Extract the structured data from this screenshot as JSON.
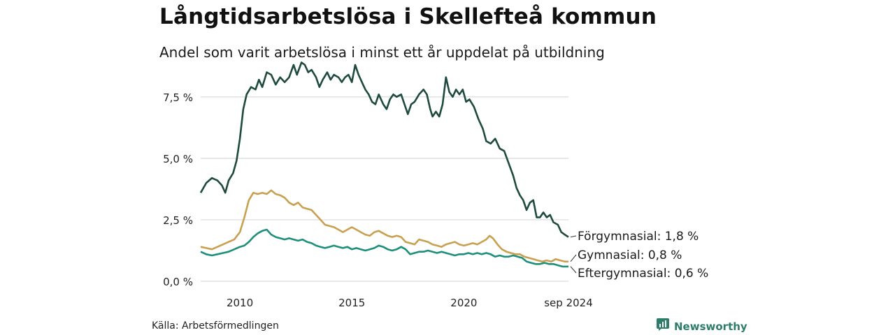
{
  "header": {
    "title": "Långtidsarbetslösa i Skellefteå kommun",
    "subtitle": "Andel som varit arbetslösa i minst ett år uppdelat på utbildning"
  },
  "footer": {
    "source": "Källa: Arbetsförmedlingen",
    "brand": "Newsworthy",
    "brand_icon": "bar-chart-speech-bubble-icon"
  },
  "colors": {
    "forgymnasial": "#1f4a3f",
    "gymnasial": "#c9a050",
    "eftergymnasial": "#1d8f7a",
    "grid": "#d9d9d9",
    "brand": "#2e7d6b"
  },
  "chart_data": {
    "type": "line",
    "title": "Långtidsarbetslösa i Skellefteå kommun",
    "subtitle": "Andel som varit arbetslösa i minst ett år uppdelat på utbildning",
    "xlabel": "",
    "ylabel": "",
    "xlim": [
      2008.25,
      2024.67
    ],
    "ylim": [
      0,
      9
    ],
    "yticks": [
      0,
      2.5,
      5,
      7.5
    ],
    "ytick_labels": [
      "0,0 %",
      "2,5 %",
      "5,0 %",
      "7,5 %"
    ],
    "xticks": [
      2010,
      2015,
      2020,
      2024.67
    ],
    "xtick_labels": [
      "2010",
      "2015",
      "2020",
      "sep 2024"
    ],
    "grid": true,
    "legend": "end-of-line labels",
    "series": [
      {
        "name": "Förgymnasial",
        "end_label": "Förgymnasial: 1,8 %",
        "points": [
          [
            2008.25,
            3.6
          ],
          [
            2008.5,
            4.0
          ],
          [
            2008.75,
            4.2
          ],
          [
            2009.0,
            4.1
          ],
          [
            2009.2,
            3.9
          ],
          [
            2009.35,
            3.6
          ],
          [
            2009.5,
            4.1
          ],
          [
            2009.7,
            4.4
          ],
          [
            2009.85,
            4.9
          ],
          [
            2010.0,
            5.8
          ],
          [
            2010.15,
            7.0
          ],
          [
            2010.3,
            7.6
          ],
          [
            2010.5,
            7.9
          ],
          [
            2010.7,
            7.8
          ],
          [
            2010.85,
            8.2
          ],
          [
            2011.0,
            7.9
          ],
          [
            2011.2,
            8.5
          ],
          [
            2011.4,
            8.4
          ],
          [
            2011.6,
            8.0
          ],
          [
            2011.8,
            8.3
          ],
          [
            2012.0,
            8.1
          ],
          [
            2012.2,
            8.3
          ],
          [
            2012.4,
            8.8
          ],
          [
            2012.55,
            8.4
          ],
          [
            2012.75,
            8.9
          ],
          [
            2012.9,
            8.8
          ],
          [
            2013.05,
            8.5
          ],
          [
            2013.2,
            8.6
          ],
          [
            2013.4,
            8.3
          ],
          [
            2013.55,
            7.9
          ],
          [
            2013.7,
            8.2
          ],
          [
            2013.9,
            8.5
          ],
          [
            2014.05,
            8.2
          ],
          [
            2014.2,
            8.4
          ],
          [
            2014.4,
            8.3
          ],
          [
            2014.55,
            8.1
          ],
          [
            2014.7,
            8.3
          ],
          [
            2014.85,
            8.4
          ],
          [
            2015.0,
            8.1
          ],
          [
            2015.15,
            8.8
          ],
          [
            2015.3,
            8.4
          ],
          [
            2015.45,
            8.1
          ],
          [
            2015.6,
            7.8
          ],
          [
            2015.75,
            7.6
          ],
          [
            2015.9,
            7.3
          ],
          [
            2016.05,
            7.2
          ],
          [
            2016.2,
            7.6
          ],
          [
            2016.4,
            7.2
          ],
          [
            2016.55,
            7.0
          ],
          [
            2016.7,
            7.4
          ],
          [
            2016.85,
            7.6
          ],
          [
            2017.0,
            7.5
          ],
          [
            2017.2,
            7.6
          ],
          [
            2017.35,
            7.2
          ],
          [
            2017.5,
            6.8
          ],
          [
            2017.65,
            7.2
          ],
          [
            2017.8,
            7.3
          ],
          [
            2018.0,
            7.6
          ],
          [
            2018.2,
            7.8
          ],
          [
            2018.35,
            7.6
          ],
          [
            2018.5,
            7.0
          ],
          [
            2018.6,
            6.7
          ],
          [
            2018.75,
            6.9
          ],
          [
            2018.9,
            6.7
          ],
          [
            2019.05,
            7.2
          ],
          [
            2019.2,
            8.3
          ],
          [
            2019.35,
            7.7
          ],
          [
            2019.5,
            7.5
          ],
          [
            2019.65,
            7.8
          ],
          [
            2019.8,
            7.6
          ],
          [
            2019.95,
            7.8
          ],
          [
            2020.1,
            7.3
          ],
          [
            2020.25,
            7.4
          ],
          [
            2020.45,
            7.1
          ],
          [
            2020.65,
            6.6
          ],
          [
            2020.85,
            6.2
          ],
          [
            2021.0,
            5.7
          ],
          [
            2021.2,
            5.6
          ],
          [
            2021.4,
            5.8
          ],
          [
            2021.6,
            5.4
          ],
          [
            2021.8,
            5.3
          ],
          [
            2022.0,
            4.8
          ],
          [
            2022.2,
            4.3
          ],
          [
            2022.35,
            3.8
          ],
          [
            2022.5,
            3.5
          ],
          [
            2022.65,
            3.3
          ],
          [
            2022.8,
            2.9
          ],
          [
            2022.95,
            3.2
          ],
          [
            2023.1,
            3.3
          ],
          [
            2023.25,
            2.6
          ],
          [
            2023.4,
            2.6
          ],
          [
            2023.55,
            2.8
          ],
          [
            2023.7,
            2.6
          ],
          [
            2023.85,
            2.7
          ],
          [
            2024.0,
            2.4
          ],
          [
            2024.2,
            2.3
          ],
          [
            2024.35,
            2.0
          ],
          [
            2024.5,
            1.9
          ],
          [
            2024.67,
            1.8
          ]
        ]
      },
      {
        "name": "Gymnasial",
        "end_label": "Gymnasial: 0,8 %",
        "points": [
          [
            2008.25,
            1.4
          ],
          [
            2008.5,
            1.35
          ],
          [
            2008.75,
            1.3
          ],
          [
            2009.0,
            1.4
          ],
          [
            2009.25,
            1.5
          ],
          [
            2009.5,
            1.6
          ],
          [
            2009.75,
            1.7
          ],
          [
            2010.0,
            2.0
          ],
          [
            2010.2,
            2.6
          ],
          [
            2010.4,
            3.3
          ],
          [
            2010.6,
            3.6
          ],
          [
            2010.8,
            3.55
          ],
          [
            2011.0,
            3.6
          ],
          [
            2011.2,
            3.55
          ],
          [
            2011.4,
            3.7
          ],
          [
            2011.6,
            3.55
          ],
          [
            2011.8,
            3.5
          ],
          [
            2012.0,
            3.4
          ],
          [
            2012.2,
            3.2
          ],
          [
            2012.4,
            3.1
          ],
          [
            2012.6,
            3.2
          ],
          [
            2012.8,
            3.0
          ],
          [
            2013.0,
            2.95
          ],
          [
            2013.2,
            2.9
          ],
          [
            2013.4,
            2.7
          ],
          [
            2013.6,
            2.5
          ],
          [
            2013.8,
            2.3
          ],
          [
            2014.0,
            2.25
          ],
          [
            2014.2,
            2.2
          ],
          [
            2014.4,
            2.1
          ],
          [
            2014.6,
            2.0
          ],
          [
            2014.8,
            2.1
          ],
          [
            2015.0,
            2.2
          ],
          [
            2015.2,
            2.1
          ],
          [
            2015.4,
            2.0
          ],
          [
            2015.6,
            1.9
          ],
          [
            2015.8,
            1.85
          ],
          [
            2016.0,
            2.0
          ],
          [
            2016.2,
            2.05
          ],
          [
            2016.4,
            1.95
          ],
          [
            2016.6,
            1.85
          ],
          [
            2016.8,
            1.8
          ],
          [
            2017.0,
            1.85
          ],
          [
            2017.2,
            1.8
          ],
          [
            2017.4,
            1.6
          ],
          [
            2017.6,
            1.55
          ],
          [
            2017.8,
            1.5
          ],
          [
            2018.0,
            1.7
          ],
          [
            2018.2,
            1.65
          ],
          [
            2018.4,
            1.6
          ],
          [
            2018.6,
            1.5
          ],
          [
            2018.8,
            1.45
          ],
          [
            2019.0,
            1.4
          ],
          [
            2019.2,
            1.5
          ],
          [
            2019.4,
            1.55
          ],
          [
            2019.6,
            1.6
          ],
          [
            2019.8,
            1.5
          ],
          [
            2020.0,
            1.45
          ],
          [
            2020.2,
            1.5
          ],
          [
            2020.4,
            1.55
          ],
          [
            2020.6,
            1.5
          ],
          [
            2020.8,
            1.6
          ],
          [
            2021.0,
            1.7
          ],
          [
            2021.15,
            1.85
          ],
          [
            2021.3,
            1.75
          ],
          [
            2021.5,
            1.5
          ],
          [
            2021.7,
            1.3
          ],
          [
            2021.9,
            1.2
          ],
          [
            2022.1,
            1.15
          ],
          [
            2022.3,
            1.1
          ],
          [
            2022.5,
            1.1
          ],
          [
            2022.7,
            1.0
          ],
          [
            2022.9,
            0.95
          ],
          [
            2023.1,
            0.9
          ],
          [
            2023.3,
            0.85
          ],
          [
            2023.5,
            0.8
          ],
          [
            2023.7,
            0.85
          ],
          [
            2023.9,
            0.8
          ],
          [
            2024.1,
            0.9
          ],
          [
            2024.3,
            0.85
          ],
          [
            2024.5,
            0.8
          ],
          [
            2024.67,
            0.8
          ]
        ]
      },
      {
        "name": "Eftergymnasial",
        "end_label": "Eftergymnasial: 0,6 %",
        "points": [
          [
            2008.25,
            1.2
          ],
          [
            2008.5,
            1.1
          ],
          [
            2008.75,
            1.05
          ],
          [
            2009.0,
            1.1
          ],
          [
            2009.25,
            1.15
          ],
          [
            2009.5,
            1.2
          ],
          [
            2009.75,
            1.3
          ],
          [
            2010.0,
            1.4
          ],
          [
            2010.2,
            1.45
          ],
          [
            2010.4,
            1.6
          ],
          [
            2010.6,
            1.8
          ],
          [
            2010.8,
            1.95
          ],
          [
            2011.0,
            2.05
          ],
          [
            2011.2,
            2.1
          ],
          [
            2011.4,
            1.9
          ],
          [
            2011.6,
            1.8
          ],
          [
            2011.8,
            1.75
          ],
          [
            2012.0,
            1.7
          ],
          [
            2012.2,
            1.75
          ],
          [
            2012.4,
            1.7
          ],
          [
            2012.6,
            1.65
          ],
          [
            2012.8,
            1.7
          ],
          [
            2013.0,
            1.6
          ],
          [
            2013.2,
            1.55
          ],
          [
            2013.4,
            1.45
          ],
          [
            2013.6,
            1.4
          ],
          [
            2013.8,
            1.35
          ],
          [
            2014.0,
            1.4
          ],
          [
            2014.2,
            1.45
          ],
          [
            2014.4,
            1.4
          ],
          [
            2014.6,
            1.35
          ],
          [
            2014.8,
            1.4
          ],
          [
            2015.0,
            1.3
          ],
          [
            2015.2,
            1.35
          ],
          [
            2015.4,
            1.3
          ],
          [
            2015.6,
            1.25
          ],
          [
            2015.8,
            1.3
          ],
          [
            2016.0,
            1.35
          ],
          [
            2016.2,
            1.45
          ],
          [
            2016.4,
            1.4
          ],
          [
            2016.6,
            1.3
          ],
          [
            2016.8,
            1.25
          ],
          [
            2017.0,
            1.3
          ],
          [
            2017.2,
            1.4
          ],
          [
            2017.4,
            1.3
          ],
          [
            2017.6,
            1.1
          ],
          [
            2017.8,
            1.15
          ],
          [
            2018.0,
            1.2
          ],
          [
            2018.2,
            1.2
          ],
          [
            2018.4,
            1.25
          ],
          [
            2018.6,
            1.2
          ],
          [
            2018.8,
            1.15
          ],
          [
            2019.0,
            1.2
          ],
          [
            2019.2,
            1.15
          ],
          [
            2019.4,
            1.1
          ],
          [
            2019.6,
            1.05
          ],
          [
            2019.8,
            1.1
          ],
          [
            2020.0,
            1.1
          ],
          [
            2020.2,
            1.15
          ],
          [
            2020.4,
            1.1
          ],
          [
            2020.6,
            1.15
          ],
          [
            2020.8,
            1.1
          ],
          [
            2021.0,
            1.15
          ],
          [
            2021.2,
            1.1
          ],
          [
            2021.4,
            1.0
          ],
          [
            2021.6,
            1.05
          ],
          [
            2021.8,
            1.0
          ],
          [
            2022.0,
            1.0
          ],
          [
            2022.2,
            1.05
          ],
          [
            2022.4,
            1.0
          ],
          [
            2022.6,
            0.95
          ],
          [
            2022.8,
            0.8
          ],
          [
            2023.0,
            0.75
          ],
          [
            2023.2,
            0.7
          ],
          [
            2023.4,
            0.7
          ],
          [
            2023.6,
            0.75
          ],
          [
            2023.8,
            0.7
          ],
          [
            2024.0,
            0.7
          ],
          [
            2024.2,
            0.65
          ],
          [
            2024.4,
            0.6
          ],
          [
            2024.67,
            0.6
          ]
        ]
      }
    ]
  }
}
